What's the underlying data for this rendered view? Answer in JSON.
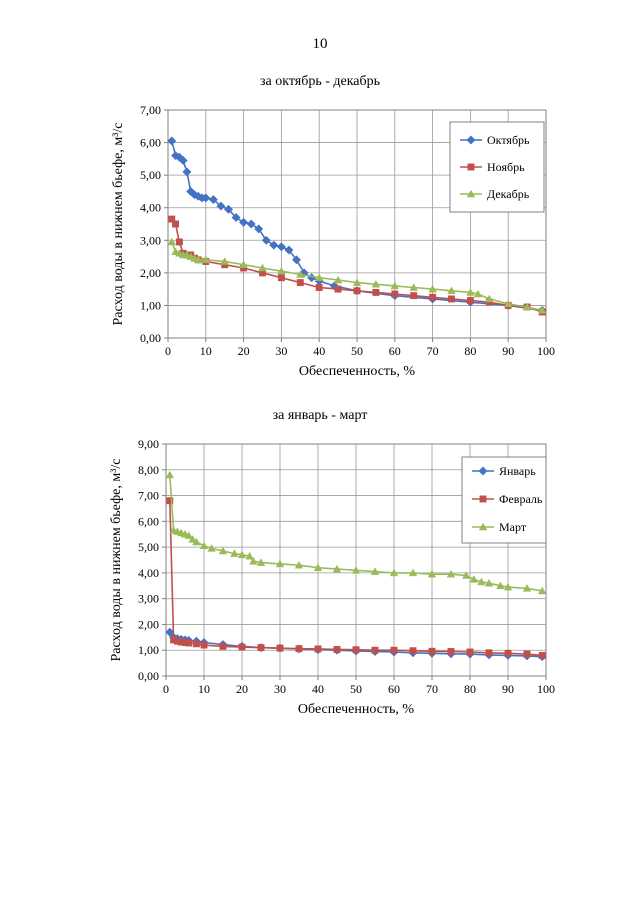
{
  "page_number": "10",
  "chart_data": [
    {
      "type": "line",
      "title": "за октябрь - декабрь",
      "xlabel": "Обеспеченность, %",
      "ylabel": "Расход воды в нижнем бьефе, м³/с",
      "xlim": [
        0,
        100
      ],
      "ylim": [
        0,
        7
      ],
      "x_ticks": [
        "0",
        "10",
        "20",
        "30",
        "40",
        "50",
        "60",
        "70",
        "80",
        "90",
        "100"
      ],
      "y_ticks": [
        "0,00",
        "1,00",
        "2,00",
        "3,00",
        "4,00",
        "5,00",
        "6,00",
        "7,00"
      ],
      "grid": true,
      "legend_position": "top-right",
      "series": [
        {
          "name": "Октябрь",
          "color": "#4472C4",
          "marker": "diamond",
          "x": [
            1,
            2,
            3,
            4,
            5,
            6,
            7,
            8,
            9,
            10,
            12,
            14,
            16,
            18,
            20,
            22,
            24,
            26,
            28,
            30,
            32,
            34,
            36,
            38,
            40,
            44,
            50,
            60,
            70,
            80,
            90,
            99
          ],
          "y": [
            6.05,
            5.6,
            5.55,
            5.45,
            5.1,
            4.5,
            4.4,
            4.35,
            4.3,
            4.3,
            4.25,
            4.05,
            3.95,
            3.7,
            3.55,
            3.5,
            3.35,
            3.0,
            2.85,
            2.8,
            2.7,
            2.4,
            2.0,
            1.85,
            1.75,
            1.6,
            1.45,
            1.3,
            1.2,
            1.1,
            1.0,
            0.85
          ]
        },
        {
          "name": "Ноябрь",
          "color": "#C0504D",
          "marker": "square",
          "x": [
            1,
            2,
            3,
            4,
            5,
            6,
            7,
            8,
            10,
            15,
            20,
            25,
            30,
            35,
            40,
            45,
            50,
            55,
            60,
            65,
            70,
            75,
            80,
            85,
            90,
            95,
            99
          ],
          "y": [
            3.65,
            3.5,
            2.95,
            2.6,
            2.55,
            2.55,
            2.45,
            2.4,
            2.35,
            2.25,
            2.15,
            2.0,
            1.85,
            1.7,
            1.55,
            1.5,
            1.45,
            1.4,
            1.35,
            1.3,
            1.25,
            1.2,
            1.15,
            1.1,
            1.0,
            0.95,
            0.8
          ]
        },
        {
          "name": "Декабрь",
          "color": "#9BBB59",
          "marker": "triangle",
          "x": [
            1,
            2,
            3,
            4,
            5,
            6,
            7,
            8,
            10,
            15,
            20,
            25,
            30,
            35,
            40,
            45,
            50,
            55,
            60,
            65,
            70,
            75,
            80,
            82,
            85,
            90,
            95,
            99
          ],
          "y": [
            2.95,
            2.65,
            2.6,
            2.55,
            2.55,
            2.5,
            2.45,
            2.4,
            2.4,
            2.35,
            2.25,
            2.15,
            2.05,
            1.95,
            1.85,
            1.78,
            1.7,
            1.65,
            1.6,
            1.55,
            1.5,
            1.45,
            1.4,
            1.35,
            1.2,
            1.05,
            0.95,
            0.85
          ]
        }
      ]
    },
    {
      "type": "line",
      "title": "за январь - март",
      "xlabel": "Обеспеченность, %",
      "ylabel": "Расход воды в нижнем бьефе, м³/с",
      "xlim": [
        0,
        100
      ],
      "ylim": [
        0,
        9
      ],
      "x_ticks": [
        "0",
        "10",
        "20",
        "30",
        "40",
        "50",
        "60",
        "70",
        "80",
        "90",
        "100"
      ],
      "y_ticks": [
        "0,00",
        "1,00",
        "2,00",
        "3,00",
        "4,00",
        "5,00",
        "6,00",
        "7,00",
        "8,00",
        "9,00"
      ],
      "grid": true,
      "legend_position": "top-right",
      "series": [
        {
          "name": "Январь",
          "color": "#4472C4",
          "marker": "diamond",
          "x": [
            1,
            2,
            3,
            4,
            5,
            6,
            8,
            10,
            15,
            20,
            25,
            30,
            35,
            40,
            45,
            50,
            55,
            60,
            65,
            70,
            75,
            80,
            85,
            90,
            95,
            99
          ],
          "y": [
            1.7,
            1.5,
            1.45,
            1.42,
            1.4,
            1.38,
            1.35,
            1.3,
            1.22,
            1.15,
            1.1,
            1.08,
            1.05,
            1.02,
            1.0,
            0.97,
            0.95,
            0.93,
            0.9,
            0.88,
            0.86,
            0.85,
            0.82,
            0.8,
            0.78,
            0.75
          ]
        },
        {
          "name": "Февраль",
          "color": "#C0504D",
          "marker": "square",
          "x": [
            1,
            2,
            3,
            4,
            5,
            6,
            8,
            10,
            15,
            20,
            25,
            30,
            35,
            40,
            45,
            50,
            55,
            60,
            65,
            70,
            75,
            80,
            85,
            90,
            95,
            99
          ],
          "y": [
            6.8,
            1.4,
            1.35,
            1.32,
            1.3,
            1.28,
            1.25,
            1.2,
            1.15,
            1.12,
            1.1,
            1.08,
            1.06,
            1.05,
            1.03,
            1.02,
            1.0,
            1.0,
            0.98,
            0.96,
            0.95,
            0.93,
            0.9,
            0.88,
            0.85,
            0.8
          ]
        },
        {
          "name": "Март",
          "color": "#9BBB59",
          "marker": "triangle",
          "x": [
            1,
            2,
            3,
            4,
            5,
            6,
            7,
            8,
            10,
            12,
            15,
            18,
            20,
            22,
            23,
            25,
            30,
            35,
            40,
            45,
            50,
            55,
            60,
            65,
            70,
            75,
            79,
            81,
            83,
            85,
            88,
            90,
            95,
            99
          ],
          "y": [
            7.8,
            5.65,
            5.6,
            5.55,
            5.5,
            5.45,
            5.3,
            5.2,
            5.05,
            4.95,
            4.85,
            4.75,
            4.7,
            4.65,
            4.45,
            4.4,
            4.35,
            4.3,
            4.2,
            4.15,
            4.1,
            4.05,
            4.0,
            4.0,
            3.95,
            3.95,
            3.9,
            3.75,
            3.65,
            3.6,
            3.5,
            3.45,
            3.4,
            3.3
          ]
        }
      ]
    }
  ]
}
